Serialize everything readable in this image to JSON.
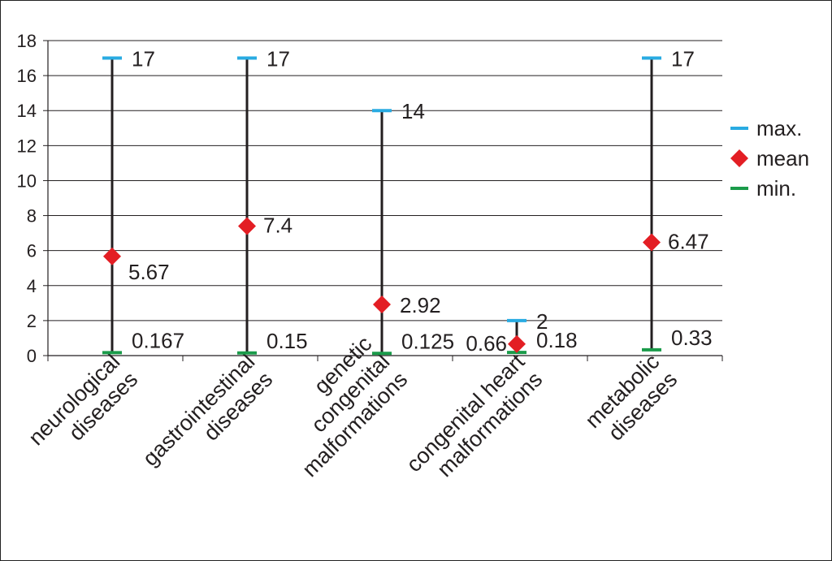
{
  "chart_data": {
    "type": "scatter",
    "categories": [
      [
        "neurological",
        "diseases"
      ],
      [
        "gastrointestinal",
        "diseases"
      ],
      [
        "genetic",
        "congenital",
        "malformations"
      ],
      [
        "congenital heart",
        "malformations"
      ],
      [
        "metabolic",
        "diseases"
      ]
    ],
    "series": [
      {
        "name": "max.",
        "marker": "dash",
        "color": "#29abe2",
        "values": [
          17,
          17,
          14,
          2,
          17
        ]
      },
      {
        "name": "mean",
        "marker": "diamond",
        "color": "#e31e24",
        "values": [
          5.67,
          7.4,
          2.92,
          0.66,
          6.47
        ]
      },
      {
        "name": "min.",
        "marker": "dash",
        "color": "#1a9b4a",
        "values": [
          0.167,
          0.15,
          0.125,
          0.18,
          0.33
        ]
      }
    ],
    "data_labels": {
      "max": [
        "17",
        "17",
        "14",
        "2",
        "17"
      ],
      "mean": [
        "5.67",
        "7.4",
        "2.92",
        "0.66",
        "6.47"
      ],
      "min": [
        "0.167",
        "0.15",
        "0.125",
        "0.18",
        "0.33"
      ]
    },
    "ylim": [
      0,
      18
    ],
    "yticks": [
      0,
      2,
      4,
      6,
      8,
      10,
      12,
      14,
      16,
      18
    ],
    "grid": true,
    "legend_position": "right",
    "colors": {
      "range_line": "#231f20",
      "grid": "#231f20"
    }
  }
}
